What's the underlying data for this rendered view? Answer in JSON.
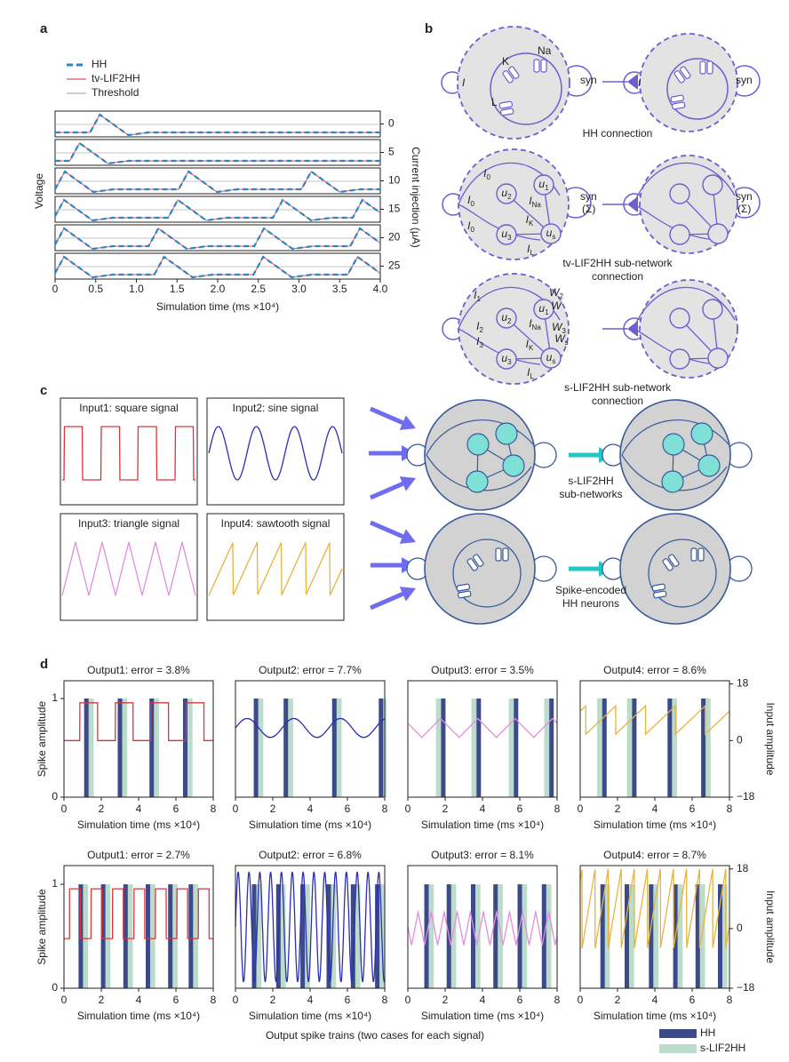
{
  "panel_labels": [
    "a",
    "b",
    "c",
    "d"
  ],
  "a": {
    "legend": [
      {
        "name": "HH",
        "color": "#2a86c8"
      },
      {
        "name": "tv-LIF2HH",
        "color": "#e0505a"
      },
      {
        "name": "Threshold",
        "color": "#b0b0b0"
      }
    ],
    "ylabel": "Voltage",
    "y2label": "Current injection (μA)",
    "xlabel": "Simulation time (ms ×10⁴)",
    "xlim": [
      0,
      4
    ],
    "xticks": [
      0,
      0.5,
      {
        "value": 1,
        "label": "1.0"
      },
      1.5,
      {
        "value": 2,
        "label": "2.0"
      },
      2.5,
      {
        "value": 3,
        "label": "3.0"
      },
      3.5,
      {
        "value": 4,
        "label": "4.0"
      }
    ],
    "rows": [
      {
        "current": 0,
        "spikes": [
          0.55
        ]
      },
      {
        "current": 5,
        "spikes": [
          0.3
        ]
      },
      {
        "current": 10,
        "spikes": [
          0.12,
          1.64,
          3.15
        ]
      },
      {
        "current": 15,
        "spikes": [
          0.11,
          1.51,
          2.8,
          3.78
        ]
      },
      {
        "current": 20,
        "spikes": [
          0.11,
          1.27,
          2.57,
          3.75
        ]
      },
      {
        "current": 25,
        "spikes": [
          0.11,
          1.34,
          2.56,
          3.72
        ]
      }
    ]
  },
  "b": {
    "hh": {
      "caption": "HH connection",
      "channels": [
        "K",
        "Na",
        "L"
      ],
      "input": "I",
      "syn": "syn"
    },
    "tv": {
      "caption": [
        "tv-LIF2HH sub-network",
        "connection"
      ],
      "syn": [
        "syn",
        "(Σ)"
      ],
      "labels": [
        {
          "base": "I",
          "sub": "0"
        },
        {
          "base": "u",
          "sub": "1"
        },
        {
          "base": "u",
          "sub": "2"
        },
        {
          "base": "I",
          "sub": "Na"
        },
        {
          "base": "I",
          "sub": "0"
        },
        {
          "base": "I",
          "sub": "K"
        },
        {
          "base": "I",
          "sub": "0"
        },
        {
          "base": "u",
          "sub": "3"
        },
        {
          "base": "u",
          "sub": "s"
        },
        {
          "base": "I",
          "sub": "L"
        }
      ]
    },
    "s": {
      "caption": [
        "s-LIF2HH sub-network",
        "connection"
      ],
      "labels": [
        {
          "base": "I",
          "sub": "1"
        },
        {
          "base": "u",
          "sub": "1"
        },
        {
          "base": "u",
          "sub": "2"
        },
        {
          "base": "I",
          "sub": "Na"
        },
        {
          "base": "I",
          "sub": "2"
        },
        {
          "base": "I",
          "sub": "K"
        },
        {
          "base": "I",
          "sub": "3"
        },
        {
          "base": "u",
          "sub": "3"
        },
        {
          "base": "u",
          "sub": "s"
        },
        {
          "base": "I",
          "sub": "L"
        },
        {
          "base": "W",
          "sub": "2"
        },
        {
          "base": "W",
          "sub": ""
        },
        {
          "base": "W",
          "sub": "3"
        },
        {
          "base": "W",
          "sub": "s"
        }
      ]
    }
  },
  "c": {
    "inputs": [
      {
        "title": "Input1: square signal",
        "shape": "square",
        "color": "#d9363e"
      },
      {
        "title": "Input2: sine signal",
        "shape": "sine",
        "color": "#2b2fb3"
      },
      {
        "title": "Input3: triangle signal",
        "shape": "triangle",
        "color": "#e38ce0"
      },
      {
        "title": "Input4: sawtooth signal",
        "shape": "sawtooth",
        "color": "#e6b43c"
      }
    ],
    "top_label": [
      "s-LIF2HH",
      "sub-networks"
    ],
    "bottom_label": [
      "Spike-encoded",
      "HH neurons"
    ]
  },
  "d": {
    "ylabel": "Spike amplitude",
    "y2label": "Input amplitude",
    "xlabel": "Simulation time (ms ×10⁴)",
    "caption": "Output spike trains (two cases for each signal)",
    "xlim": [
      0,
      8
    ],
    "xticks": [
      0,
      2,
      4,
      6,
      8
    ],
    "ylim": [
      0,
      1.18
    ],
    "yticks": [
      0,
      1
    ],
    "y2lim": [
      -18,
      19
    ],
    "y2ticks": [
      18,
      0,
      {
        "value": -18,
        "label": "−18"
      }
    ],
    "spike_amplitude": 1,
    "legend": [
      {
        "name": "HH",
        "color": "#3d4a8a"
      },
      {
        "name": "s-LIF2HH",
        "color": "#bcdccb"
      }
    ],
    "plots": [
      {
        "title": "Output1: error = 3.8%",
        "input": {
          "low": 0,
          "high": 12,
          "period": 1.9,
          "start": 0.85
        },
        "hh_spikes": [
          1.2,
          3.0,
          4.7,
          6.5
        ],
        "s_spikes": [
          1.4,
          3.2,
          4.9,
          6.7
        ]
      },
      {
        "title": "Output2: error = 7.7%",
        "input": {
          "low": 1,
          "high": 7,
          "period": 2.5,
          "start": 0
        },
        "hh_spikes": [
          1.1,
          2.7,
          5.3,
          7.8
        ],
        "s_spikes": [
          1.3,
          2.9,
          5.5,
          7.9
        ]
      },
      {
        "title": "Output3: error = 3.5%",
        "input": {
          "low": 1,
          "high": 7,
          "period": 2.0,
          "start": 0.75
        },
        "hh_spikes": [
          1.9,
          3.8,
          5.8,
          7.7
        ],
        "s_spikes": [
          1.7,
          3.6,
          5.6,
          7.5
        ]
      },
      {
        "title": "Output4: error = 8.6%",
        "input": {
          "low": 2,
          "high": 11,
          "period": 1.6,
          "start": 0.3
        },
        "hh_spikes": [
          1.3,
          2.9,
          4.8,
          6.6
        ],
        "s_spikes": [
          1.1,
          2.7,
          5.0,
          6.8
        ]
      },
      {
        "title": "Output1: error = 2.7%",
        "input": {
          "low": -3,
          "high": 12,
          "period": 1.15,
          "start": 0.3
        },
        "hh_spikes": [
          0.9,
          2.1,
          3.3,
          4.5,
          5.7,
          6.8
        ],
        "s_spikes": [
          1.1,
          2.3,
          3.5,
          4.7,
          5.9,
          7.0
        ]
      },
      {
        "title": "Output2: error = 6.8%",
        "input": {
          "low": -16,
          "high": 17,
          "period": 0.58,
          "start": 0
        },
        "hh_spikes": [
          1.0,
          2.3,
          3.6,
          5.0,
          6.3,
          7.6
        ],
        "s_spikes": [
          1.2,
          2.5,
          3.8,
          5.2,
          6.5,
          7.8
        ]
      },
      {
        "title": "Output3: error = 8.1%",
        "input": {
          "low": -5,
          "high": 5,
          "period": 0.7,
          "start": 0.2
        },
        "hh_spikes": [
          1.0,
          2.2,
          3.5,
          4.7,
          6.0,
          7.3
        ],
        "s_spikes": [
          1.2,
          2.4,
          3.7,
          4.9,
          6.2,
          7.5
        ]
      },
      {
        "title": "Output4: error = 8.7%",
        "input": {
          "low": -6,
          "high": 18,
          "period": 0.7,
          "start": 0.1
        },
        "hh_spikes": [
          1.2,
          2.5,
          3.8,
          5.1,
          6.3,
          7.5
        ],
        "s_spikes": [
          1.4,
          2.7,
          4.0,
          5.3,
          6.5,
          7.7
        ]
      }
    ]
  }
}
